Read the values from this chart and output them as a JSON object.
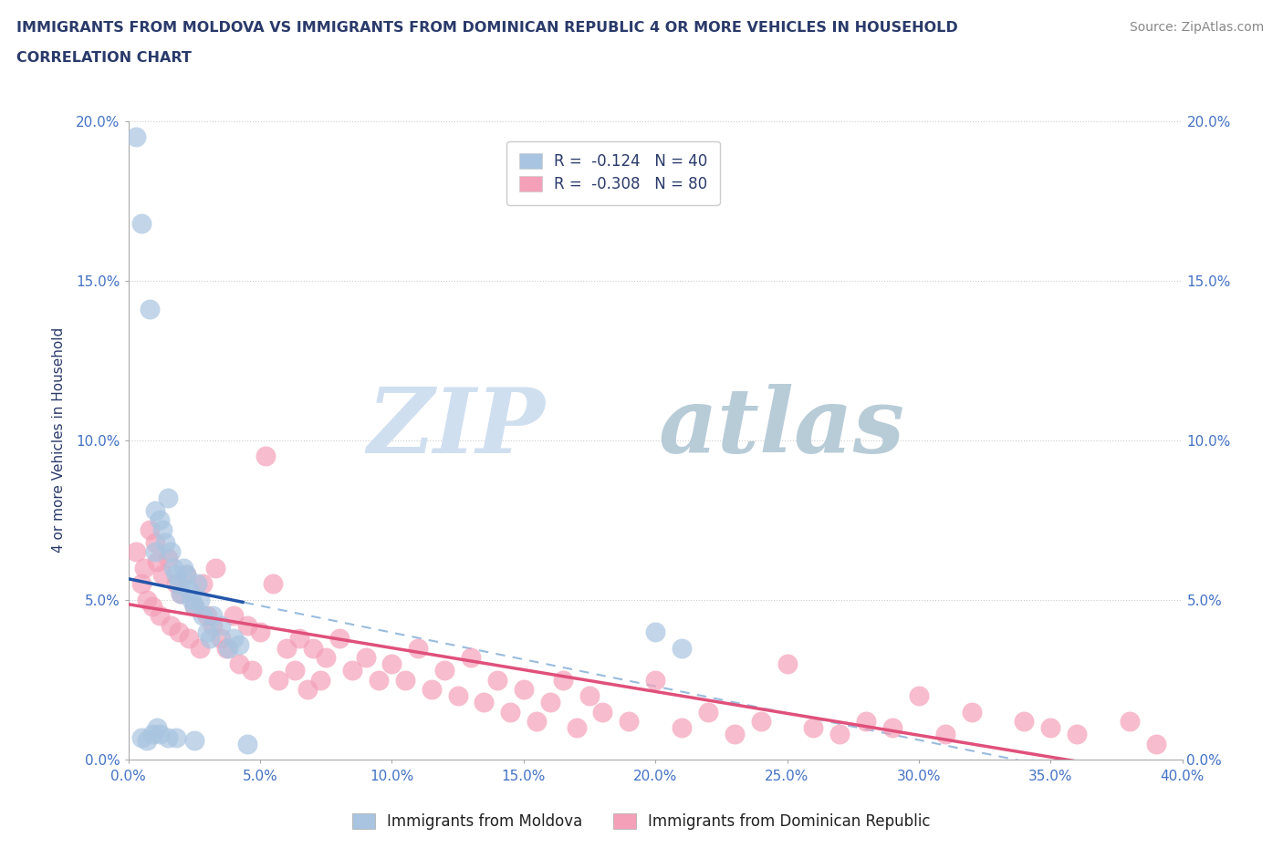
{
  "title_line1": "IMMIGRANTS FROM MOLDOVA VS IMMIGRANTS FROM DOMINICAN REPUBLIC 4 OR MORE VEHICLES IN HOUSEHOLD",
  "title_line2": "CORRELATION CHART",
  "source_text": "Source: ZipAtlas.com",
  "watermark_zip": "ZIP",
  "watermark_atlas": "atlas",
  "xlabel": "",
  "ylabel": "4 or more Vehicles in Household",
  "legend_moldova": "Immigrants from Moldova",
  "legend_dr": "Immigrants from Dominican Republic",
  "r_moldova": -0.124,
  "n_moldova": 40,
  "r_dr": -0.308,
  "n_dr": 80,
  "xlim": [
    0.0,
    0.4
  ],
  "ylim": [
    0.0,
    0.2
  ],
  "xticks": [
    0.0,
    0.05,
    0.1,
    0.15,
    0.2,
    0.25,
    0.3,
    0.35,
    0.4
  ],
  "yticks": [
    0.0,
    0.05,
    0.1,
    0.15,
    0.2
  ],
  "color_moldova": "#a8c4e0",
  "color_dr": "#f4a0b8",
  "line_color_moldova": "#2255aa",
  "line_color_dr": "#e0507a",
  "line_color_dashed": "#99bbdd",
  "title_color": "#2a3a6a",
  "axis_color": "#4472c4",
  "source_color": "#888888",
  "moldova_x": [
    0.003,
    0.005,
    0.005,
    0.007,
    0.008,
    0.009,
    0.01,
    0.01,
    0.011,
    0.012,
    0.012,
    0.013,
    0.014,
    0.015,
    0.015,
    0.016,
    0.017,
    0.018,
    0.018,
    0.019,
    0.02,
    0.021,
    0.022,
    0.023,
    0.024,
    0.025,
    0.025,
    0.026,
    0.027,
    0.028,
    0.03,
    0.031,
    0.032,
    0.035,
    0.038,
    0.04,
    0.042,
    0.045,
    0.2,
    0.21
  ],
  "moldova_y": [
    0.195,
    0.168,
    0.007,
    0.006,
    0.141,
    0.008,
    0.078,
    0.065,
    0.01,
    0.075,
    0.008,
    0.072,
    0.068,
    0.082,
    0.007,
    0.065,
    0.06,
    0.058,
    0.007,
    0.055,
    0.052,
    0.06,
    0.058,
    0.053,
    0.05,
    0.048,
    0.006,
    0.055,
    0.05,
    0.045,
    0.04,
    0.038,
    0.045,
    0.042,
    0.035,
    0.038,
    0.036,
    0.005,
    0.04,
    0.035
  ],
  "dr_x": [
    0.003,
    0.005,
    0.006,
    0.007,
    0.008,
    0.009,
    0.01,
    0.011,
    0.012,
    0.013,
    0.015,
    0.016,
    0.018,
    0.019,
    0.02,
    0.022,
    0.023,
    0.025,
    0.027,
    0.028,
    0.03,
    0.032,
    0.033,
    0.035,
    0.037,
    0.04,
    0.042,
    0.045,
    0.047,
    0.05,
    0.052,
    0.055,
    0.057,
    0.06,
    0.063,
    0.065,
    0.068,
    0.07,
    0.073,
    0.075,
    0.08,
    0.085,
    0.09,
    0.095,
    0.1,
    0.105,
    0.11,
    0.115,
    0.12,
    0.125,
    0.13,
    0.135,
    0.14,
    0.145,
    0.15,
    0.155,
    0.16,
    0.165,
    0.17,
    0.175,
    0.18,
    0.19,
    0.2,
    0.21,
    0.22,
    0.23,
    0.24,
    0.25,
    0.26,
    0.27,
    0.28,
    0.29,
    0.3,
    0.31,
    0.32,
    0.34,
    0.35,
    0.36,
    0.38,
    0.39
  ],
  "dr_y": [
    0.065,
    0.055,
    0.06,
    0.05,
    0.072,
    0.048,
    0.068,
    0.062,
    0.045,
    0.058,
    0.063,
    0.042,
    0.055,
    0.04,
    0.052,
    0.058,
    0.038,
    0.048,
    0.035,
    0.055,
    0.045,
    0.042,
    0.06,
    0.038,
    0.035,
    0.045,
    0.03,
    0.042,
    0.028,
    0.04,
    0.095,
    0.055,
    0.025,
    0.035,
    0.028,
    0.038,
    0.022,
    0.035,
    0.025,
    0.032,
    0.038,
    0.028,
    0.032,
    0.025,
    0.03,
    0.025,
    0.035,
    0.022,
    0.028,
    0.02,
    0.032,
    0.018,
    0.025,
    0.015,
    0.022,
    0.012,
    0.018,
    0.025,
    0.01,
    0.02,
    0.015,
    0.012,
    0.025,
    0.01,
    0.015,
    0.008,
    0.012,
    0.03,
    0.01,
    0.008,
    0.012,
    0.01,
    0.02,
    0.008,
    0.015,
    0.012,
    0.01,
    0.008,
    0.012,
    0.005
  ]
}
